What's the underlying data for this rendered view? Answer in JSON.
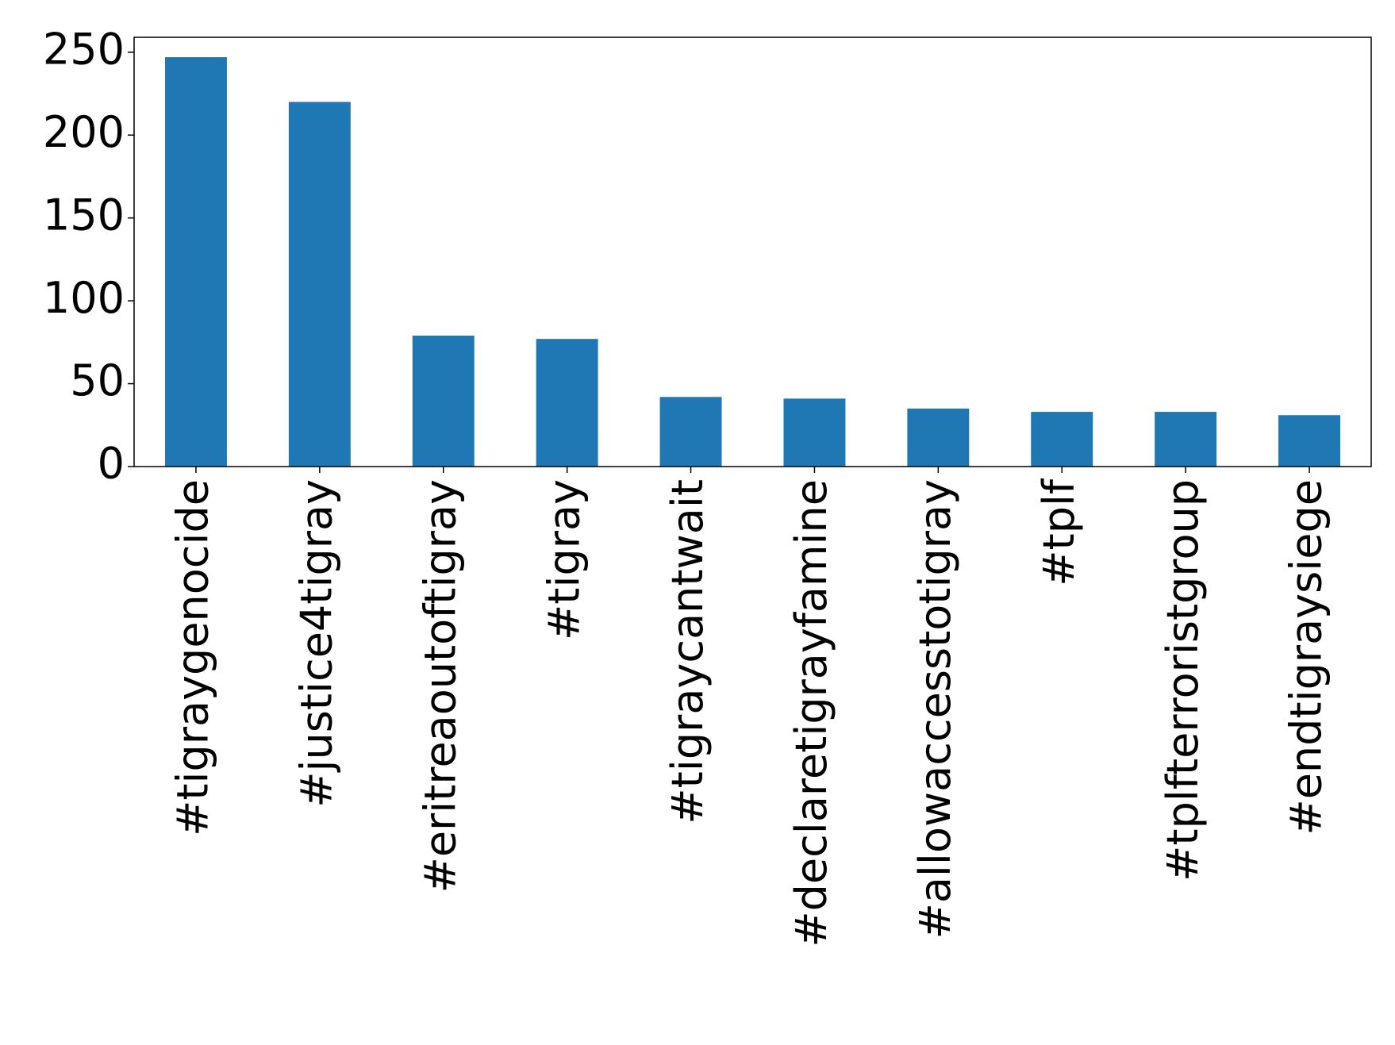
{
  "chart_data": {
    "type": "bar",
    "categories": [
      "#tigraygenocide",
      "#justice4tigray",
      "#eritreaoutoftigray",
      "#tigray",
      "#tigraycantwait",
      "#declaretigrayfamine",
      "#allowaccesstotigray",
      "#tplf",
      "#tplfterroristgroup",
      "#endtigraysiege"
    ],
    "values": [
      247,
      220,
      79,
      77,
      42,
      41,
      35,
      33,
      33,
      31
    ],
    "color": "#1f77b4",
    "ylim": [
      0,
      259
    ],
    "yticks": [
      0,
      50,
      100,
      150,
      200,
      250
    ],
    "grid": false
  }
}
